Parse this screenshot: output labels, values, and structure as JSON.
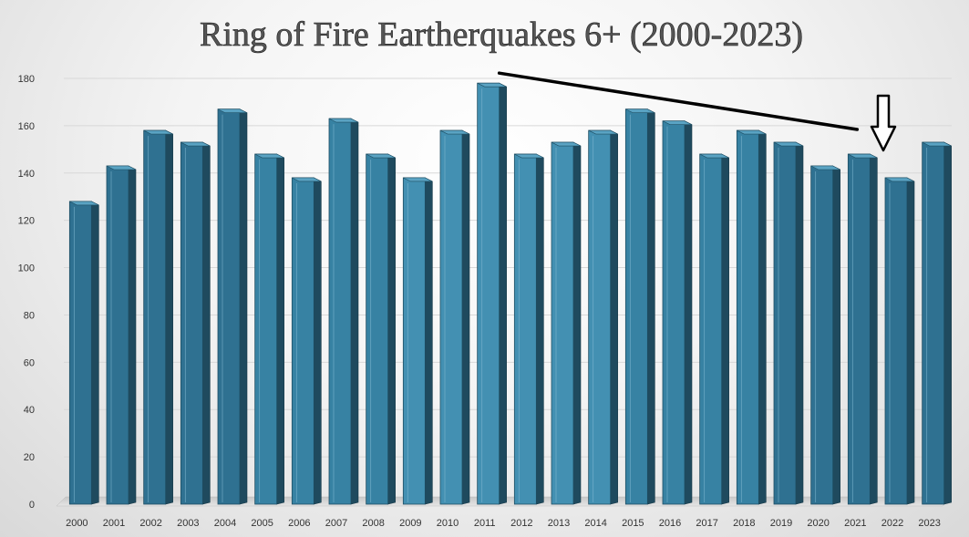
{
  "chart_data": {
    "type": "bar",
    "title": "Ring of Fire Eartherquakes 6+ (2000-2023)",
    "xlabel": "",
    "ylabel": "",
    "categories": [
      "2000",
      "2001",
      "2002",
      "2003",
      "2004",
      "2005",
      "2006",
      "2007",
      "2008",
      "2009",
      "2010",
      "2011",
      "2012",
      "2013",
      "2014",
      "2015",
      "2016",
      "2017",
      "2018",
      "2019",
      "2020",
      "2021",
      "2022",
      "2023"
    ],
    "values": [
      128,
      143,
      158,
      153,
      167,
      148,
      138,
      163,
      148,
      138,
      158,
      178,
      148,
      153,
      158,
      167,
      162,
      148,
      158,
      153,
      143,
      148,
      138,
      153
    ],
    "ylim": [
      0,
      180
    ],
    "yticks": [
      0,
      20,
      40,
      60,
      80,
      100,
      120,
      140,
      160,
      180
    ],
    "grid": true,
    "legend": "none",
    "bar_color": "#3d86a6",
    "annotations": [
      {
        "type": "line-pointer",
        "from_category": "2011",
        "to_category": "2021"
      },
      {
        "type": "down-arrow",
        "target_category": "2022"
      }
    ]
  }
}
